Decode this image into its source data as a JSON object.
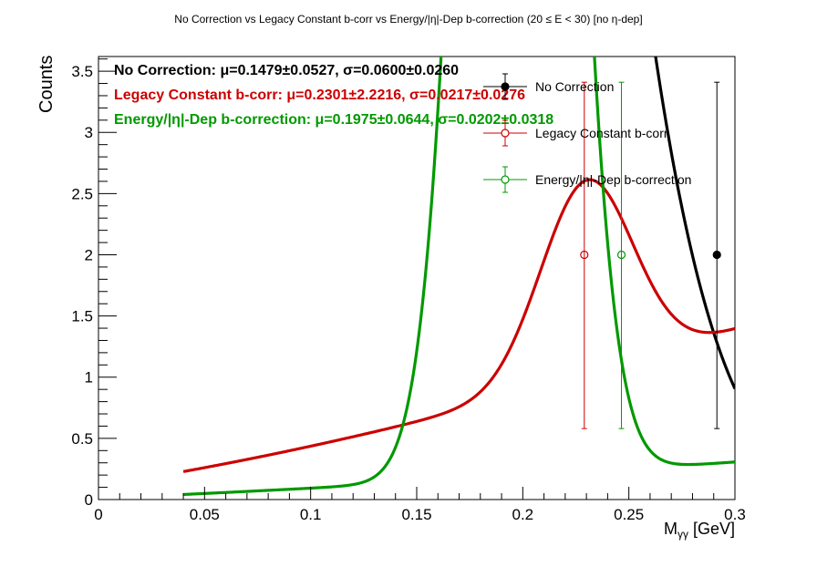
{
  "chart_data": {
    "type": "line",
    "title": "No Correction vs Legacy Constant b-corr vs Energy/|η|-Dep b-correction   (20 ≤ E < 30)   [no η-dep]",
    "xlabel": "Mγγ [GeV]",
    "ylabel": "Counts",
    "xlim": [
      0,
      0.3
    ],
    "ylim": [
      0,
      3.62
    ],
    "x_ticks": [
      0,
      0.05,
      0.1,
      0.15,
      0.2,
      0.25,
      0.3
    ],
    "x_tick_labels": [
      "0",
      "0.05",
      "0.1",
      "0.15",
      "0.2",
      "0.25",
      "0.3"
    ],
    "y_ticks": [
      0,
      0.5,
      1,
      1.5,
      2,
      2.5,
      3,
      3.5
    ],
    "y_tick_labels": [
      "0",
      "0.5",
      "1",
      "1.5",
      "2",
      "2.5",
      "3",
      "3.5"
    ],
    "grid": false,
    "legend_position": "top-right",
    "series": [
      {
        "name": "No Correction",
        "color": "#000000",
        "marker": "filled-circle",
        "points": [
          {
            "x": 0.2915,
            "y": 2.0,
            "y_low": 0.58,
            "y_high": 3.41
          }
        ],
        "fit": {
          "mu": 0.1479,
          "sigma": 0.06,
          "amp": 22.5,
          "c0": 0.0,
          "c1": 0.0,
          "c2": 0.0,
          "xmin": 0.04,
          "xmax": 0.3
        },
        "stats_label": "No Correction:",
        "stats_value": "μ=0.1479±0.0527, σ=0.0600±0.0260"
      },
      {
        "name": "Legacy Constant b-corr",
        "color": "#cc0000",
        "marker": "open-circle",
        "points": [
          {
            "x": 0.229,
            "y": 2.0,
            "y_low": 0.58,
            "y_high": 3.41
          }
        ],
        "fit": {
          "mu": 0.2301,
          "sigma": 0.0217,
          "amp": 1.6,
          "c0": 0.11,
          "c1": 2.76,
          "c2": 5.0,
          "xmin": 0.04,
          "xmax": 0.3
        },
        "stats_label": "Legacy Constant b-corr:",
        "stats_value": "μ=0.2301±2.2216, σ=0.0217±0.0276"
      },
      {
        "name": "Energy/|η|-Dep b-correction",
        "color": "#009900",
        "marker": "open-circle",
        "points": [
          {
            "x": 0.2465,
            "y": 2.0,
            "y_low": 0.58,
            "y_high": 3.41
          }
        ],
        "fit": {
          "mu": 0.1975,
          "sigma": 0.0202,
          "amp": 17.0,
          "c0": 0.01,
          "c1": 0.75,
          "c2": 0.8,
          "xmin": 0.04,
          "xmax": 0.3
        },
        "stats_label": "Energy/|η|-Dep b-correction:",
        "stats_value": "μ=0.1975±0.0644, σ=0.0202±0.0318"
      }
    ]
  }
}
